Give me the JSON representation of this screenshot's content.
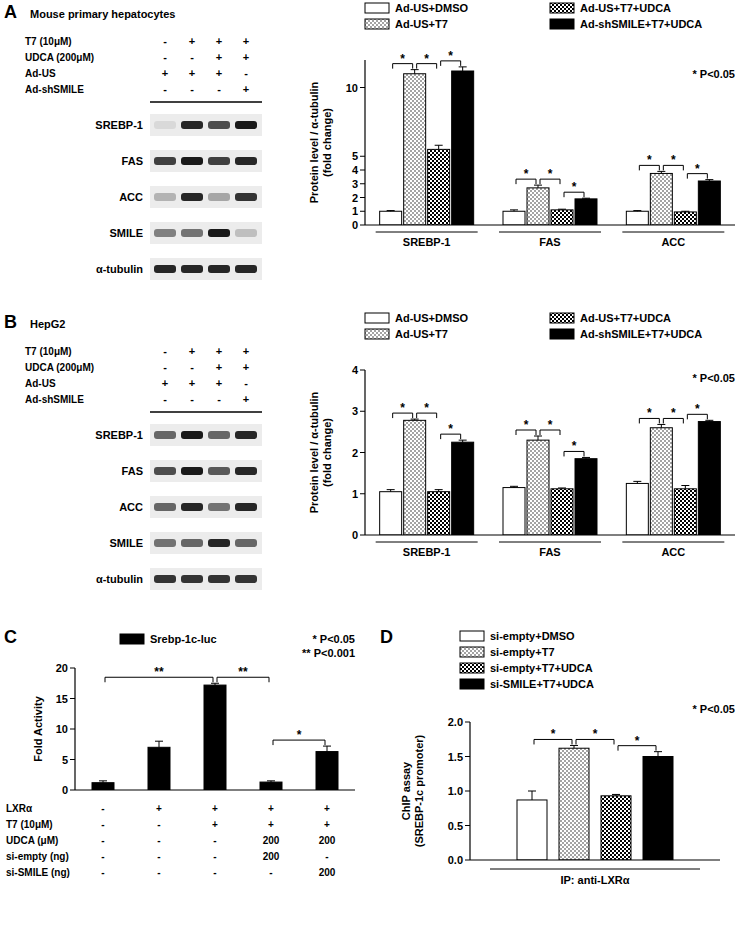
{
  "panel_labels": [
    "A",
    "B",
    "C",
    "D"
  ],
  "blots": [
    {
      "title": "Mouse primary hepatocytes",
      "treatments": [
        {
          "label": "T7 (10μM)",
          "marks": [
            "-",
            "+",
            "+",
            "+"
          ]
        },
        {
          "label": "UDCA (200μM)",
          "marks": [
            "-",
            "-",
            "+",
            "+"
          ]
        },
        {
          "label": "Ad-US",
          "marks": [
            "+",
            "+",
            "+",
            "-"
          ]
        },
        {
          "label": "Ad-shSMILE",
          "marks": [
            "-",
            "-",
            "-",
            "+"
          ]
        }
      ],
      "bands": [
        {
          "protein": "SREBP-1",
          "intensity": [
            0.15,
            0.85,
            0.7,
            0.9
          ]
        },
        {
          "protein": "FAS",
          "intensity": [
            0.75,
            0.9,
            0.75,
            0.85
          ]
        },
        {
          "protein": "ACC",
          "intensity": [
            0.3,
            0.85,
            0.35,
            0.8
          ]
        },
        {
          "protein": "SMILE",
          "intensity": [
            0.5,
            0.55,
            0.9,
            0.25
          ]
        },
        {
          "protein": "α-tubulin",
          "intensity": [
            0.85,
            0.85,
            0.85,
            0.85
          ]
        }
      ]
    },
    {
      "title": "HepG2",
      "treatments": [
        {
          "label": "T7 (10μM)",
          "marks": [
            "-",
            "+",
            "+",
            "+"
          ]
        },
        {
          "label": "UDCA (200μM)",
          "marks": [
            "-",
            "-",
            "+",
            "+"
          ]
        },
        {
          "label": "Ad-US",
          "marks": [
            "+",
            "+",
            "+",
            "-"
          ]
        },
        {
          "label": "Ad-shSMILE",
          "marks": [
            "-",
            "-",
            "-",
            "+"
          ]
        }
      ],
      "bands": [
        {
          "protein": "SREBP-1",
          "intensity": [
            0.6,
            0.9,
            0.6,
            0.85
          ]
        },
        {
          "protein": "FAS",
          "intensity": [
            0.7,
            0.9,
            0.65,
            0.85
          ]
        },
        {
          "protein": "ACC",
          "intensity": [
            0.6,
            0.85,
            0.55,
            0.85
          ]
        },
        {
          "protein": "SMILE",
          "intensity": [
            0.55,
            0.6,
            0.85,
            0.6
          ]
        },
        {
          "protein": "α-tubulin",
          "intensity": [
            0.8,
            0.8,
            0.8,
            0.8
          ]
        }
      ]
    }
  ],
  "treatments_c": [
    {
      "label": "LXRα",
      "marks": [
        "-",
        "+",
        "+",
        "+",
        "+"
      ]
    },
    {
      "label": "T7 (10μM)",
      "marks": [
        "-",
        "-",
        "+",
        "+",
        "+"
      ]
    },
    {
      "label": "UDCA (μM)",
      "marks": [
        "-",
        "-",
        "-",
        "200",
        "200"
      ]
    },
    {
      "label": "si-empty (ng)",
      "marks": [
        "-",
        "-",
        "-",
        "200",
        "-"
      ]
    },
    {
      "label": "si-SMILE (ng)",
      "marks": [
        "-",
        "-",
        "-",
        "-",
        "200"
      ]
    }
  ],
  "chart_data": [
    {
      "type": "bar",
      "y_label": "Protein level / α-tubulin\n(fold change)",
      "categories": [
        "SREBP-1",
        "FAS",
        "ACC"
      ],
      "series": [
        {
          "name": "Ad-US+DMSO",
          "color": "#ffffff",
          "values": [
            1,
            1,
            1
          ],
          "errors": [
            0.05,
            0.1,
            0.05
          ]
        },
        {
          "name": "Ad-US+T7",
          "color": "#ffffff",
          "values": [
            11,
            2.7,
            3.75
          ],
          "errors": [
            0.3,
            0.2,
            0.15
          ]
        },
        {
          "name": "Ad-US+T7+UDCA",
          "color": "#ffffff",
          "values": [
            5.5,
            1.1,
            0.95
          ],
          "errors": [
            0.3,
            0.05,
            0.05
          ]
        },
        {
          "name": "Ad-shSMILE+T7+UDCA",
          "color": "#000000",
          "values": [
            11.2,
            1.9,
            3.2
          ],
          "errors": [
            0.3,
            0.05,
            0.1
          ]
        }
      ],
      "ylim": [
        0,
        12
      ],
      "yticks": [
        0,
        1,
        2,
        3,
        4,
        5,
        10
      ],
      "grid": false,
      "legend": "top",
      "annotations": [
        {
          "text": "* P<0.05"
        },
        {
          "text": "*",
          "between": [
            [
              0,
              0
            ],
            [
              0,
              1
            ]
          ]
        },
        {
          "text": "*",
          "between": [
            [
              0,
              1
            ],
            [
              0,
              2
            ]
          ]
        },
        {
          "text": "*",
          "between": [
            [
              0,
              2
            ],
            [
              0,
              3
            ]
          ]
        },
        {
          "text": "*",
          "between": [
            [
              1,
              0
            ],
            [
              1,
              1
            ]
          ]
        },
        {
          "text": "*",
          "between": [
            [
              1,
              1
            ],
            [
              1,
              2
            ]
          ]
        },
        {
          "text": "*",
          "between": [
            [
              1,
              2
            ],
            [
              1,
              3
            ]
          ]
        },
        {
          "text": "*",
          "between": [
            [
              2,
              0
            ],
            [
              2,
              1
            ]
          ]
        },
        {
          "text": "*",
          "between": [
            [
              2,
              1
            ],
            [
              2,
              2
            ]
          ]
        },
        {
          "text": "*",
          "between": [
            [
              2,
              2
            ],
            [
              2,
              3
            ]
          ]
        }
      ]
    },
    {
      "type": "bar",
      "y_label": "Protein level / α-tubulin\n(fold change)",
      "categories": [
        "SREBP-1",
        "FAS",
        "ACC"
      ],
      "series": [
        {
          "name": "Ad-US+DMSO",
          "color": "#ffffff",
          "values": [
            1.05,
            1.15,
            1.25
          ],
          "errors": [
            0.05,
            0.03,
            0.05
          ]
        },
        {
          "name": "Ad-US+T7",
          "color": "#ffffff",
          "values": [
            2.78,
            2.3,
            2.6
          ],
          "errors": [
            0.03,
            0.1,
            0.08
          ]
        },
        {
          "name": "Ad-US+T7+UDCA",
          "color": "#ffffff",
          "values": [
            1.05,
            1.12,
            1.12
          ],
          "errors": [
            0.05,
            0.02,
            0.08
          ]
        },
        {
          "name": "Ad-shSMILE+T7+UDCA",
          "color": "#000000",
          "values": [
            2.25,
            1.85,
            2.75
          ],
          "errors": [
            0.05,
            0.03,
            0.03
          ]
        }
      ],
      "ylim": [
        0,
        4
      ],
      "yticks": [
        0,
        1,
        2,
        3,
        4
      ],
      "grid": false,
      "legend": "top",
      "annotations": [
        {
          "text": "* P<0.05"
        },
        {
          "text": "*",
          "between": [
            [
              0,
              0
            ],
            [
              0,
              1
            ]
          ]
        },
        {
          "text": "*",
          "between": [
            [
              0,
              1
            ],
            [
              0,
              2
            ]
          ]
        },
        {
          "text": "*",
          "between": [
            [
              0,
              2
            ],
            [
              0,
              3
            ]
          ]
        },
        {
          "text": "*",
          "between": [
            [
              1,
              0
            ],
            [
              1,
              1
            ]
          ]
        },
        {
          "text": "*",
          "between": [
            [
              1,
              1
            ],
            [
              1,
              2
            ]
          ]
        },
        {
          "text": "*",
          "between": [
            [
              1,
              2
            ],
            [
              1,
              3
            ]
          ]
        },
        {
          "text": "*",
          "between": [
            [
              2,
              0
            ],
            [
              2,
              1
            ]
          ]
        },
        {
          "text": "*",
          "between": [
            [
              2,
              1
            ],
            [
              2,
              2
            ]
          ]
        },
        {
          "text": "*",
          "between": [
            [
              2,
              2
            ],
            [
              2,
              3
            ]
          ]
        }
      ]
    },
    {
      "type": "bar",
      "y_label": "Fold Activity",
      "categories": [
        null,
        null,
        null,
        null,
        null
      ],
      "series": [
        {
          "name": "Srebp-1c-luc",
          "color": "#000000",
          "values": [
            1.2,
            7,
            17.2,
            1.3,
            6.3
          ],
          "errors": [
            0.3,
            1,
            0.3,
            0.2,
            0.9
          ]
        }
      ],
      "ylim": [
        0,
        20
      ],
      "yticks": [
        0,
        5,
        10,
        15,
        20
      ],
      "grid": false,
      "legend": "top",
      "annotations": [
        {
          "text": "* P<0.05"
        },
        {
          "text": "** P<0.001"
        },
        {
          "text": "**",
          "between": [
            [
              0,
              0
            ],
            [
              2,
              0
            ]
          ]
        },
        {
          "text": "**",
          "between": [
            [
              2,
              0
            ],
            [
              3,
              0
            ]
          ]
        },
        {
          "text": "*",
          "between": [
            [
              3,
              0
            ],
            [
              4,
              0
            ]
          ]
        }
      ]
    },
    {
      "type": "bar",
      "y_label": "ChIP assay\n(SREBP-1c promoter)",
      "x_label": "IP: anti-LXRα",
      "categories": [
        null
      ],
      "series": [
        {
          "name": "si-empty+DMSO",
          "color": "#ffffff",
          "values": [
            0.87
          ],
          "errors": [
            0.13
          ]
        },
        {
          "name": "si-empty+T7",
          "color": "#ffffff",
          "values": [
            1.62
          ],
          "errors": [
            0.04
          ]
        },
        {
          "name": "si-empty+T7+UDCA",
          "color": "#ffffff",
          "values": [
            0.93
          ],
          "errors": [
            0.02
          ]
        },
        {
          "name": "si-SMILE+T7+UDCA",
          "color": "#000000",
          "values": [
            1.5
          ],
          "errors": [
            0.07
          ]
        }
      ],
      "ylim": [
        0,
        2
      ],
      "yticks": [
        {
          "value": 0,
          "label": "0.0"
        },
        0.5,
        {
          "value": 1,
          "label": "1.0"
        },
        1.5,
        {
          "value": 2,
          "label": "2.0"
        }
      ],
      "grid": false,
      "legend": "top",
      "annotations": [
        {
          "text": "* P<0.05"
        },
        {
          "text": "*",
          "between": [
            [
              0,
              0
            ],
            [
              0,
              1
            ]
          ]
        },
        {
          "text": "*",
          "between": [
            [
              0,
              1
            ],
            [
              0,
              2
            ]
          ]
        },
        {
          "text": "*",
          "between": [
            [
              0,
              2
            ],
            [
              0,
              3
            ]
          ]
        }
      ]
    }
  ]
}
